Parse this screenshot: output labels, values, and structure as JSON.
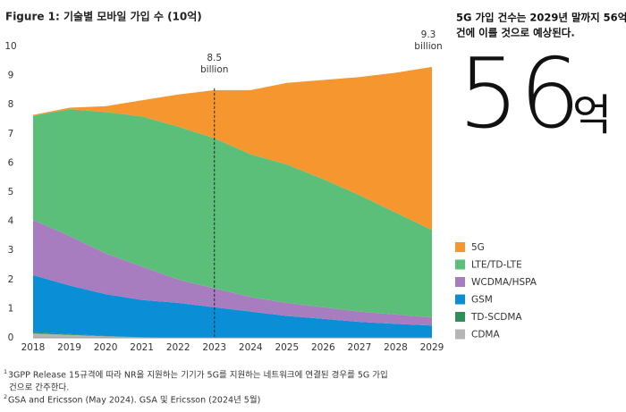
{
  "chart_data": {
    "type": "stacked_area",
    "title": "Figure 1: 기술별 모바일 가입 수 (10억)",
    "categories": [
      "2018",
      "2019",
      "2020",
      "2021",
      "2022",
      "2023",
      "2024",
      "2025",
      "2026",
      "2027",
      "2028",
      "2029"
    ],
    "ylim": [
      0,
      10
    ],
    "yticks": [
      0,
      1,
      2,
      3,
      4,
      5,
      6,
      7,
      8,
      9,
      10
    ],
    "series": [
      {
        "name": "CDMA",
        "color": "#b5b5b5",
        "values": [
          0.15,
          0.1,
          0.05,
          0.02,
          0.01,
          0,
          0,
          0,
          0,
          0,
          0,
          0
        ]
      },
      {
        "name": "TD-SCDMA",
        "color": "#2f8f5b",
        "values": [
          0.05,
          0.03,
          0.01,
          0,
          0,
          0,
          0,
          0,
          0,
          0,
          0,
          0
        ]
      },
      {
        "name": "GSM",
        "color": "#0a8fd6",
        "values": [
          1.95,
          1.67,
          1.44,
          1.28,
          1.19,
          1.05,
          0.9,
          0.75,
          0.65,
          0.55,
          0.48,
          0.42
        ]
      },
      {
        "name": "WCDMA/HSPA",
        "color": "#a77dbf",
        "values": [
          1.9,
          1.7,
          1.4,
          1.15,
          0.8,
          0.65,
          0.5,
          0.45,
          0.4,
          0.35,
          0.32,
          0.28
        ]
      },
      {
        "name": "LTE/TD-LTE",
        "color": "#5cbf79",
        "values": [
          3.57,
          4.35,
          4.85,
          5.15,
          5.25,
          5.15,
          4.9,
          4.75,
          4.4,
          4.0,
          3.5,
          3.0
        ]
      },
      {
        "name": "5G",
        "color": "#f5962f",
        "values": [
          0.03,
          0.05,
          0.2,
          0.55,
          1.1,
          1.65,
          2.2,
          2.8,
          3.4,
          4.05,
          4.8,
          5.6
        ]
      }
    ],
    "annotations": [
      {
        "category": "2023",
        "value": 8.5,
        "lines": [
          "8.5",
          "billion"
        ],
        "dashed_line": true
      },
      {
        "category": "2029",
        "value": 9.3,
        "lines": [
          "9.3",
          "billion"
        ],
        "dashed_line": false
      }
    ],
    "callout": {
      "headline": [
        "5G 가입 건수는 2029년 말까지 56억",
        "건에 이를 것으로 예상된다."
      ],
      "big_number": "56",
      "big_unit": "억"
    },
    "footnotes": [
      {
        "marker": "1",
        "lines": [
          "3GPP Release 15규격에 따라 NR을 지원하는 기기가 5G를 지원하는 네트워크에 연결된 경우를 5G 가입",
          "건으로 간주한다."
        ]
      },
      {
        "marker": "2",
        "lines": [
          "GSA and Ericsson (May 2024). GSA 및 Ericsson (2024년 5월)"
        ]
      }
    ]
  }
}
